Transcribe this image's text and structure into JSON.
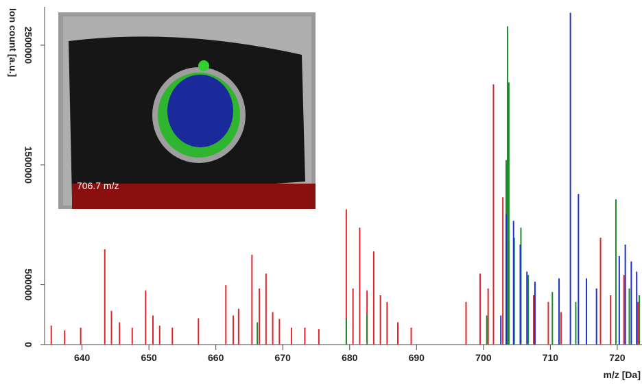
{
  "chart_data": {
    "type": "stem",
    "y_label": "Ion count [a.u.]",
    "x_label": "m/z [Da]",
    "inset_label": "706.7 m/z",
    "xlim": [
      634.4,
      723.7
    ],
    "xticks": [
      640,
      650,
      660,
      670,
      680,
      690,
      700,
      710,
      720
    ],
    "ylim": [
      0,
      2820000
    ],
    "yticks": [
      0,
      500000,
      1500000,
      2500000
    ],
    "series": [
      {
        "color": "#e0262b",
        "x": [
          635.4,
          637.4,
          639.8,
          643.4,
          644.4,
          645.6,
          647.5,
          649.5,
          650.6,
          651.6,
          653.5,
          657.4,
          661.5,
          662.6,
          663.4,
          665.4,
          666.5,
          667.5,
          668.5,
          669.5,
          671.3,
          673.3,
          675.4,
          679.5,
          680.5,
          681.5,
          682.6,
          683.6,
          684.6,
          685.6,
          687.2,
          689.2,
          697.4,
          699.5,
          700.7,
          701.5,
          702.9,
          703.8,
          705.6,
          707.5,
          709.7,
          711.6,
          717.5,
          719.0,
          721.0,
          723.1
        ],
        "values": [
          158000,
          118500,
          141000,
          796000,
          282000,
          186000,
          141000,
          451000,
          243000,
          158000,
          141000,
          220000,
          497000,
          243000,
          299000,
          751000,
          468000,
          593000,
          271000,
          214000,
          141000,
          141000,
          130000,
          1129000,
          468000,
          976000,
          451000,
          779000,
          412000,
          356000,
          186000,
          141000,
          356000,
          593000,
          468000,
          2173000,
          1230000,
          863000,
          581000,
          412000,
          356000,
          271000,
          892000,
          412000,
          581000,
          356000
        ]
      },
      {
        "color": "#1e8a2a",
        "x": [
          666.2,
          679.5,
          682.6,
          700.5,
          703.4,
          703.6,
          703.8,
          704.6,
          705.6,
          706.7,
          710.3,
          713.8,
          719.8,
          721.8,
          723.3
        ],
        "values": [
          186000,
          214000,
          254000,
          243000,
          1541000,
          2658000,
          2189000,
          892000,
          976000,
          581000,
          440000,
          356000,
          1213000,
          468000,
          412000
        ]
      },
      {
        "color": "#1f2fd0",
        "x": [
          702.6,
          703.4,
          704.5,
          705.5,
          706.5,
          707.7,
          711.3,
          713.0,
          714.2,
          715.4,
          716.9,
          720.3,
          721.2,
          722.1,
          722.9
        ],
        "values": [
          243000,
          1089000,
          1033000,
          835000,
          609000,
          525000,
          553000,
          2771000,
          1258000,
          553000,
          468000,
          739000,
          835000,
          694000,
          609000
        ]
      }
    ]
  }
}
